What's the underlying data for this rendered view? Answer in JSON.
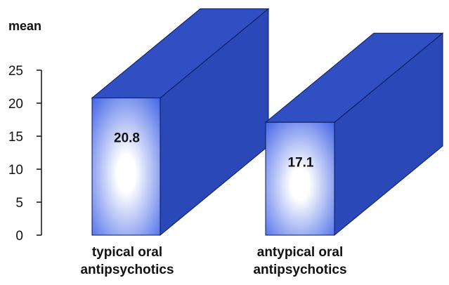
{
  "chart_data": {
    "type": "bar",
    "style": "3d-column",
    "categories": [
      [
        "typical oral",
        "antipsychotics"
      ],
      [
        "antypical oral",
        "antipsychotics"
      ]
    ],
    "values": [
      20.8,
      17.1
    ],
    "data_labels": [
      "20.8",
      "17.1"
    ],
    "title": "",
    "xlabel": "",
    "ylabel": "mean",
    "ylim": [
      0,
      25
    ],
    "yticks": [
      0,
      5,
      10,
      15,
      20,
      25
    ],
    "grid": false,
    "legend": "none",
    "colors": {
      "bar_side": "#2a48b8",
      "bar_top": "#2f4fc2",
      "bar_front_edge": "#3f62e6",
      "bar_front_center": "#ffffff",
      "bar_outline": "#0a1a5a",
      "axis": "#111111"
    }
  }
}
